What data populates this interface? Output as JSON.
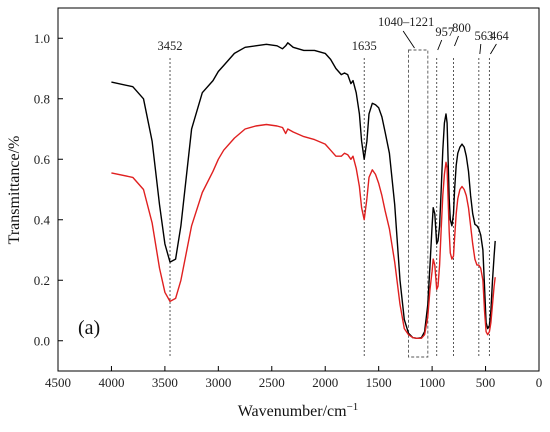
{
  "chart_data": {
    "type": "line",
    "panel_label": "(a)",
    "xlabel": "Wavenumber/cm",
    "xlabel_sup": "−1",
    "ylabel": "Transmittance/%",
    "xlim": [
      4500,
      0
    ],
    "ylim": [
      -0.1,
      1.1
    ],
    "x_ticks": [
      "4500",
      "4000",
      "3500",
      "3000",
      "2500",
      "2000",
      "1500",
      "1000",
      "500",
      "0"
    ],
    "y_ticks": [
      "0.0",
      "0.2",
      "0.4",
      "0.6",
      "0.8",
      "1.0"
    ],
    "annotations": [
      {
        "label": "3452",
        "x": 3452
      },
      {
        "label": "1635",
        "x": 1635
      },
      {
        "label": "1040–1221",
        "x_range": [
          1221,
          1040
        ]
      },
      {
        "label": "957",
        "x": 957
      },
      {
        "label": "800",
        "x": 800
      },
      {
        "label": "563",
        "x": 563
      },
      {
        "label": "464",
        "x": 464
      }
    ],
    "series": [
      {
        "color": "#000000",
        "x": [
          4000,
          3800,
          3700,
          3620,
          3550,
          3500,
          3452,
          3400,
          3350,
          3250,
          3150,
          3050,
          3000,
          2950,
          2850,
          2750,
          2650,
          2550,
          2450,
          2400,
          2370,
          2350,
          2300,
          2200,
          2100,
          2000,
          1950,
          1900,
          1850,
          1820,
          1790,
          1760,
          1740,
          1710,
          1680,
          1660,
          1635,
          1610,
          1590,
          1560,
          1530,
          1500,
          1470,
          1440,
          1400,
          1350,
          1300,
          1260,
          1221,
          1180,
          1140,
          1100,
          1070,
          1040,
          1020,
          1000,
          990,
          975,
          957,
          945,
          930,
          915,
          900,
          885,
          870,
          860,
          850,
          840,
          830,
          815,
          800,
          790,
          775,
          760,
          740,
          720,
          700,
          680,
          660,
          640,
          620,
          600,
          580,
          563,
          545,
          525,
          510,
          495,
          480,
          464,
          450,
          435,
          420,
          410
        ],
        "y": [
          0.855,
          0.84,
          0.8,
          0.66,
          0.45,
          0.32,
          0.26,
          0.27,
          0.38,
          0.7,
          0.82,
          0.86,
          0.89,
          0.91,
          0.95,
          0.97,
          0.975,
          0.98,
          0.975,
          0.965,
          0.975,
          0.985,
          0.97,
          0.96,
          0.96,
          0.95,
          0.93,
          0.9,
          0.88,
          0.885,
          0.88,
          0.85,
          0.86,
          0.82,
          0.75,
          0.66,
          0.6,
          0.66,
          0.75,
          0.785,
          0.78,
          0.77,
          0.74,
          0.69,
          0.62,
          0.45,
          0.2,
          0.07,
          0.025,
          0.01,
          0.008,
          0.01,
          0.03,
          0.12,
          0.25,
          0.38,
          0.44,
          0.42,
          0.32,
          0.33,
          0.38,
          0.5,
          0.63,
          0.72,
          0.75,
          0.72,
          0.6,
          0.47,
          0.4,
          0.38,
          0.42,
          0.5,
          0.58,
          0.62,
          0.64,
          0.65,
          0.64,
          0.61,
          0.56,
          0.48,
          0.42,
          0.385,
          0.38,
          0.37,
          0.35,
          0.3,
          0.18,
          0.06,
          0.04,
          0.05,
          0.1,
          0.2,
          0.28,
          0.33
        ]
      },
      {
        "color": "#e02020",
        "x": [
          4000,
          3800,
          3700,
          3620,
          3550,
          3500,
          3452,
          3400,
          3350,
          3250,
          3150,
          3050,
          3000,
          2950,
          2850,
          2750,
          2650,
          2550,
          2450,
          2400,
          2370,
          2350,
          2300,
          2200,
          2100,
          2000,
          1950,
          1900,
          1850,
          1820,
          1790,
          1760,
          1740,
          1710,
          1680,
          1660,
          1635,
          1610,
          1590,
          1560,
          1530,
          1500,
          1470,
          1440,
          1400,
          1350,
          1300,
          1260,
          1221,
          1180,
          1140,
          1100,
          1070,
          1040,
          1020,
          1000,
          990,
          975,
          957,
          945,
          930,
          915,
          900,
          885,
          870,
          860,
          850,
          840,
          830,
          815,
          800,
          790,
          775,
          760,
          740,
          720,
          700,
          680,
          660,
          640,
          620,
          600,
          580,
          563,
          545,
          525,
          510,
          495,
          480,
          464,
          450,
          435,
          420,
          410
        ],
        "y": [
          0.555,
          0.54,
          0.5,
          0.39,
          0.24,
          0.16,
          0.13,
          0.14,
          0.2,
          0.38,
          0.49,
          0.56,
          0.6,
          0.63,
          0.67,
          0.7,
          0.71,
          0.715,
          0.71,
          0.705,
          0.685,
          0.7,
          0.69,
          0.675,
          0.665,
          0.65,
          0.63,
          0.61,
          0.61,
          0.62,
          0.615,
          0.6,
          0.61,
          0.57,
          0.51,
          0.44,
          0.4,
          0.47,
          0.54,
          0.565,
          0.55,
          0.52,
          0.48,
          0.43,
          0.37,
          0.26,
          0.12,
          0.04,
          0.02,
          0.01,
          0.008,
          0.008,
          0.02,
          0.08,
          0.17,
          0.23,
          0.27,
          0.25,
          0.17,
          0.18,
          0.25,
          0.37,
          0.48,
          0.55,
          0.59,
          0.57,
          0.47,
          0.36,
          0.29,
          0.27,
          0.28,
          0.34,
          0.42,
          0.47,
          0.5,
          0.51,
          0.5,
          0.48,
          0.44,
          0.38,
          0.32,
          0.27,
          0.25,
          0.25,
          0.24,
          0.2,
          0.1,
          0.03,
          0.02,
          0.03,
          0.06,
          0.12,
          0.18,
          0.21
        ]
      }
    ]
  }
}
